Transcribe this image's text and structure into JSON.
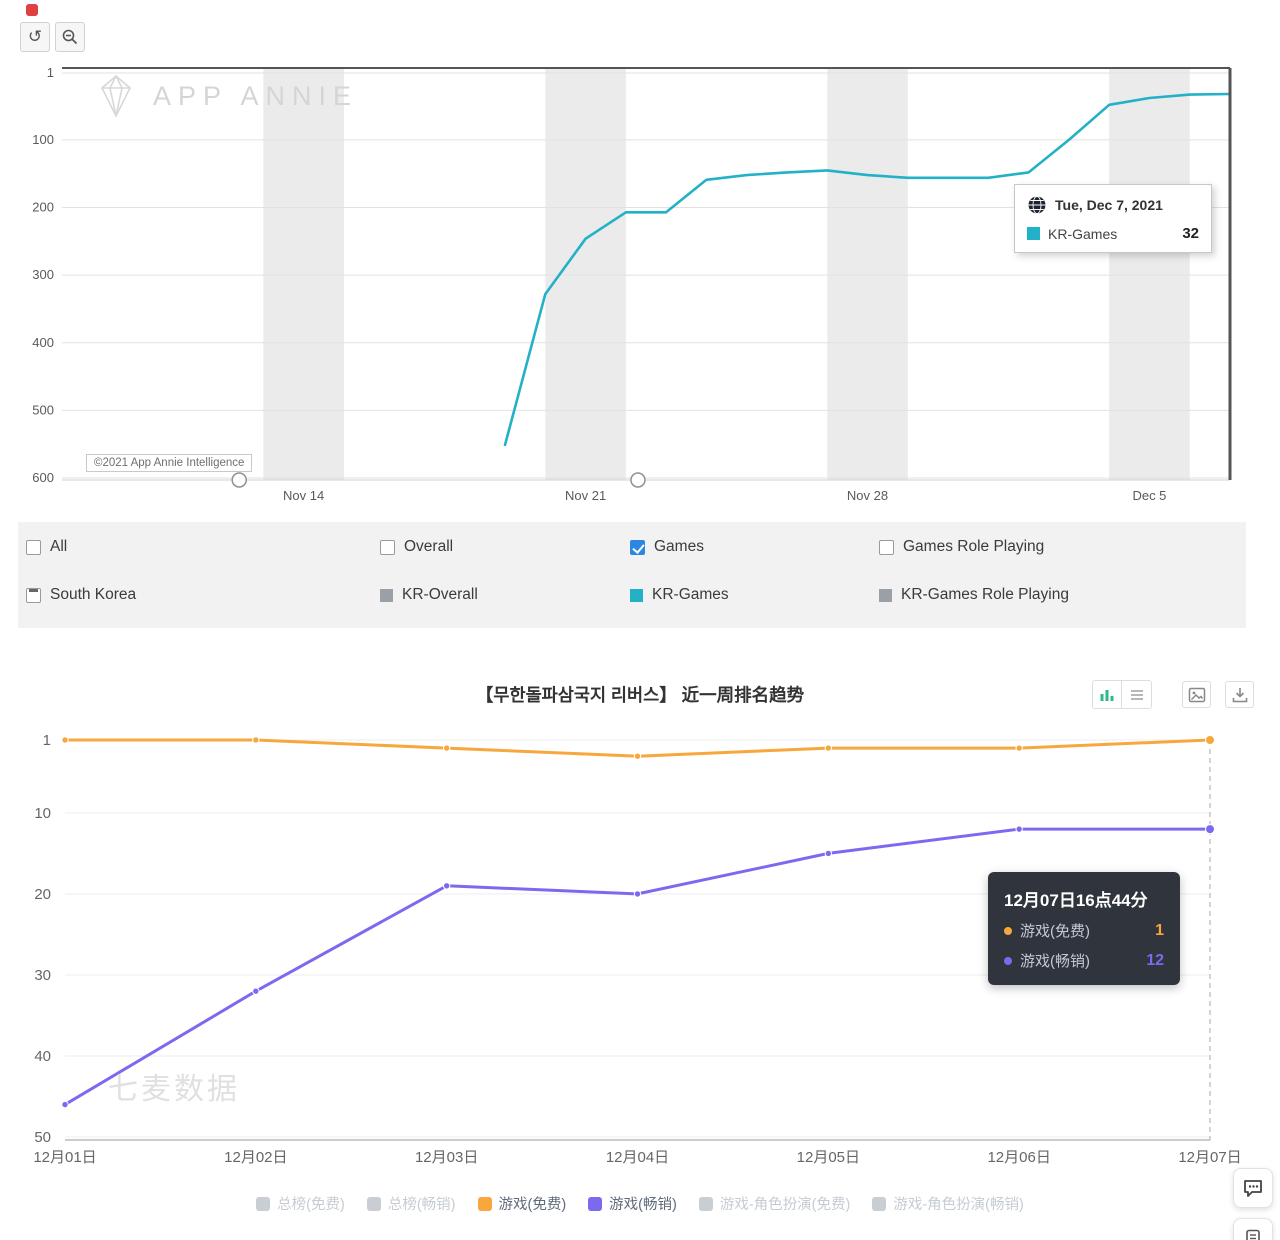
{
  "annie": {
    "watermark": "APP ANNIE",
    "copyright": "©2021 App Annie Intelligence",
    "tooltip": {
      "date": "Tue, Dec 7, 2021",
      "series": "KR-Games",
      "value": "32",
      "series_color": "#22b1c7"
    },
    "filters": [
      {
        "label": "All",
        "checked": false
      },
      {
        "label": "Overall",
        "checked": false
      },
      {
        "label": "Games",
        "checked": true
      },
      {
        "label": "Games Role Playing",
        "checked": false
      }
    ],
    "region": {
      "label": "South Korea"
    },
    "legend": [
      {
        "label": "KR-Overall",
        "color": "#9aa0a6"
      },
      {
        "label": "KR-Games",
        "color": "#22b1c7"
      },
      {
        "label": "KR-Games Role Playing",
        "color": "#9aa0a6"
      }
    ]
  },
  "qimai": {
    "title": "【무한돌파삼국지 리버스】 近一周排名趋势",
    "watermark": "七麦数据",
    "tooltip": {
      "time": "12月07日16点44分",
      "rows": [
        {
          "label": "游戏(免费)",
          "value": "1",
          "color": "#f8a73c"
        },
        {
          "label": "游戏(畅销)",
          "value": "12",
          "color": "#7b6af0"
        }
      ]
    },
    "legend": [
      {
        "label": "总榜(免费)",
        "color": "#c9cdd4",
        "active": false
      },
      {
        "label": "总榜(畅销)",
        "color": "#c9cdd4",
        "active": false
      },
      {
        "label": "游戏(免费)",
        "color": "#f8a73c",
        "active": true
      },
      {
        "label": "游戏(畅销)",
        "color": "#7b6af0",
        "active": true
      },
      {
        "label": "游戏-角色扮演(免费)",
        "color": "#c9cdd4",
        "active": false
      },
      {
        "label": "游戏-角色扮演(畅销)",
        "color": "#c9cdd4",
        "active": false
      }
    ]
  },
  "chart_data": [
    {
      "type": "line",
      "title": "",
      "y_ticks": [
        1,
        100,
        200,
        300,
        400,
        500,
        600
      ],
      "y_range": [
        1,
        600
      ],
      "y_inverted": true,
      "x_tick_labels": [
        "Nov 14",
        "Nov 21",
        "Nov 28",
        "Dec 5"
      ],
      "x_tick_days": [
        6,
        13,
        20,
        27
      ],
      "x_domain_days": [
        0,
        29
      ],
      "weekend_bands_days": [
        [
          5,
          7
        ],
        [
          12,
          14
        ],
        [
          19,
          21
        ],
        [
          26,
          28
        ]
      ],
      "slider_handles_days": [
        4.4,
        14.3
      ],
      "grid": true,
      "series": [
        {
          "name": "KR-Games",
          "color": "#22b1c7",
          "start_day": 11,
          "values": [
            551,
            328,
            246,
            207,
            207,
            159,
            152,
            148,
            145,
            152,
            156,
            156,
            156,
            148,
            100,
            48,
            38,
            33,
            32
          ]
        }
      ]
    },
    {
      "type": "line",
      "title": "【무한돌파삼국지 리버스】 近一周排名趋势",
      "y_ticks": [
        1,
        10,
        20,
        30,
        40,
        50
      ],
      "y_range": [
        1,
        50
      ],
      "y_inverted": true,
      "categories": [
        "12月01日",
        "12月02日",
        "12月03日",
        "12月04日",
        "12月05日",
        "12月06日",
        "12月07日"
      ],
      "hover_index": 6,
      "grid": true,
      "legend_position": "bottom",
      "series": [
        {
          "name": "游戏(免费)",
          "color": "#f8a73c",
          "values": [
            1,
            1,
            2,
            3,
            2,
            2,
            1
          ]
        },
        {
          "name": "游戏(畅销)",
          "color": "#7b6af0",
          "values": [
            46,
            32,
            19,
            20,
            15,
            12,
            12
          ]
        }
      ]
    }
  ]
}
